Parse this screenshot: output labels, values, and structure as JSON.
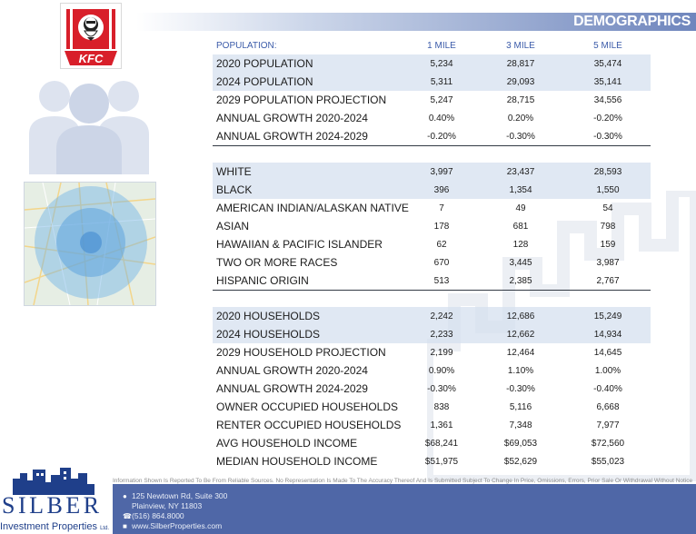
{
  "header": {
    "title": "DEMOGRAPHICS"
  },
  "logo": {
    "text": "KFC"
  },
  "table": {
    "columns": [
      "POPULATION:",
      "1 MILE",
      "3 MILE",
      "5 MILE"
    ],
    "sections": [
      {
        "rows": [
          {
            "label": "2020 POPULATION",
            "values": [
              "5,234",
              "28,817",
              "35,474"
            ]
          },
          {
            "label": "2024 POPULATION",
            "values": [
              "5,311",
              "29,093",
              "35,141"
            ]
          },
          {
            "label": "2029 POPULATION PROJECTION",
            "values": [
              "5,247",
              "28,715",
              "34,556"
            ]
          },
          {
            "label": "ANNUAL GROWTH 2020-2024",
            "values": [
              "0.40%",
              "0.20%",
              "-0.20%"
            ]
          },
          {
            "label": "ANNUAL GROWTH 2024-2029",
            "values": [
              "-0.20%",
              "-0.30%",
              "-0.30%"
            ]
          }
        ]
      },
      {
        "rows": [
          {
            "label": "WHITE",
            "values": [
              "3,997",
              "23,437",
              "28,593"
            ]
          },
          {
            "label": "BLACK",
            "values": [
              "396",
              "1,354",
              "1,550"
            ]
          },
          {
            "label": "AMERICAN INDIAN/ALASKAN NATIVE",
            "values": [
              "7",
              "49",
              "54"
            ]
          },
          {
            "label": "ASIAN",
            "values": [
              "178",
              "681",
              "798"
            ]
          },
          {
            "label": "HAWAIIAN & PACIFIC ISLANDER",
            "values": [
              "62",
              "128",
              "159"
            ]
          },
          {
            "label": "TWO OR MORE RACES",
            "values": [
              "670",
              "3,445",
              "3,987"
            ]
          },
          {
            "label": "HISPANIC ORIGIN",
            "values": [
              "513",
              "2,385",
              "2,767"
            ]
          }
        ]
      },
      {
        "rows": [
          {
            "label": "2020 HOUSEHOLDS",
            "values": [
              "2,242",
              "12,686",
              "15,249"
            ]
          },
          {
            "label": "2024 HOUSEHOLDS",
            "values": [
              "2,233",
              "12,662",
              "14,934"
            ]
          },
          {
            "label": "2029 HOUSEHOLD PROJECTION",
            "values": [
              "2,199",
              "12,464",
              "14,645"
            ]
          },
          {
            "label": "ANNUAL GROWTH 2020-2024",
            "values": [
              "0.90%",
              "1.10%",
              "1.00%"
            ]
          },
          {
            "label": "ANNUAL GROWTH 2024-2029",
            "values": [
              "-0.30%",
              "-0.30%",
              "-0.40%"
            ]
          },
          {
            "label": "OWNER OCCUPIED HOUSEHOLDS",
            "values": [
              "838",
              "5,116",
              "6,668"
            ]
          },
          {
            "label": "RENTER OCCUPIED HOUSEHOLDS",
            "values": [
              "1,361",
              "7,348",
              "7,977"
            ]
          },
          {
            "label": "AVG HOUSEHOLD INCOME",
            "values": [
              "$68,241",
              "$69,053",
              "$72,560"
            ]
          },
          {
            "label": "MEDIAN HOUSEHOLD INCOME",
            "values": [
              "$51,975",
              "$52,629",
              "$55,023"
            ]
          }
        ]
      }
    ]
  },
  "footer": {
    "disclaimer": "Information Shown Is Reported To Be From Reliable Sources. No Representation Is Made To The Accuracy Thereof And Is Submitted Subject To Change In Price, Omissions, Errors, Prior Sale Or Withdrawal Without Notice",
    "address_line1": "125 Newtown Rd, Suite 300",
    "address_line2": "Plainview, NY 11803",
    "phone": "(516) 864.8000",
    "website": "www.SilberProperties.com",
    "brand_name": "SILBER",
    "brand_sub": "Investment Properties",
    "brand_suffix": "Ltd."
  },
  "icons": [
    "pin-icon",
    "phone-icon",
    "globe-icon",
    "people-icon",
    "map-image"
  ]
}
